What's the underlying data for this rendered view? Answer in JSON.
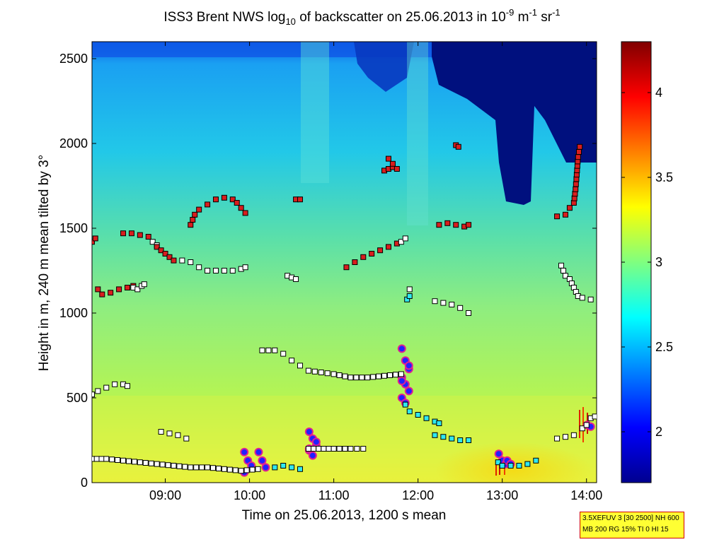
{
  "title": {
    "prefix": "ISS3 Brent NWS log",
    "sub": "10",
    "middle": " of backscatter on 25.06.2013 in 10",
    "sup1": "-9",
    "unit1": " m",
    "sup2": "-1",
    "unit2": " sr",
    "sup3": "-1"
  },
  "info_box": {
    "line1": "3.5XEFUV 3 [30 2500] NH 600",
    "line2": "MB 200 RG 15% TI 0 HI 15"
  },
  "colors": {
    "background_low": "#c8f53c",
    "background_mid": "#5be0a0",
    "background_high": "#1ea8f0",
    "dark_top": "#00007e",
    "warm_surface": "#ffd800",
    "marker_red": "#d81e1e",
    "marker_white": "#ffffff",
    "marker_cyan": "#2fe8f0",
    "marker_blue": "#2020ff"
  },
  "chart_data": {
    "type": "heatmap",
    "title": "ISS3 Brent NWS log10 of backscatter on 25.06.2013 in 10^-9 m^-1 sr^-1",
    "xlabel": "Time on 25.06.2013, 1200 s mean",
    "ylabel": "Height in m, 240 m mean tilted by 3°",
    "xlim": [
      8.13,
      14.12
    ],
    "ylim": [
      0,
      2600
    ],
    "xticks": [
      9,
      10,
      11,
      12,
      13,
      14
    ],
    "xtick_labels": [
      "09:00",
      "10:00",
      "11:00",
      "12:00",
      "13:00",
      "14:00"
    ],
    "yticks": [
      0,
      500,
      1000,
      1500,
      2000,
      2500
    ],
    "ytick_labels": [
      "0",
      "500",
      "1000",
      "1500",
      "2000",
      "2500"
    ],
    "colorbar": {
      "range": [
        1.7,
        4.3
      ],
      "ticks": [
        2,
        2.5,
        3,
        3.5,
        4
      ],
      "tick_labels": [
        "2",
        "2.5",
        "3",
        "3.5",
        "4"
      ],
      "colormap": "jet"
    },
    "field_description": "log10 backscatter field with dark-blue low values aloft after 12:00 and warm values near the surface around 13:00",
    "layers": [
      {
        "name": "red-upper-1",
        "marker": "red",
        "points": [
          [
            8.13,
            1420
          ],
          [
            8.17,
            1440
          ]
        ]
      },
      {
        "name": "red-upper-2",
        "marker": "red",
        "points": [
          [
            8.2,
            1140
          ],
          [
            8.25,
            1110
          ],
          [
            8.35,
            1120
          ],
          [
            8.45,
            1140
          ],
          [
            8.55,
            1150
          ],
          [
            8.62,
            1160
          ]
        ]
      },
      {
        "name": "white-upper-2",
        "marker": "white",
        "points": [
          [
            8.62,
            1150
          ],
          [
            8.67,
            1140
          ],
          [
            8.72,
            1160
          ],
          [
            8.75,
            1170
          ]
        ]
      },
      {
        "name": "red-upper-3",
        "marker": "red",
        "points": [
          [
            8.5,
            1470
          ],
          [
            8.6,
            1470
          ],
          [
            8.7,
            1460
          ],
          [
            8.8,
            1450
          ]
        ]
      },
      {
        "name": "white-upper-3",
        "marker": "white",
        "points": [
          [
            8.85,
            1420
          ],
          [
            8.9,
            1400
          ]
        ]
      },
      {
        "name": "red-upper-4",
        "marker": "red",
        "points": [
          [
            8.9,
            1390
          ],
          [
            8.95,
            1370
          ],
          [
            9.0,
            1350
          ],
          [
            9.05,
            1330
          ],
          [
            9.1,
            1310
          ]
        ]
      },
      {
        "name": "white-upper-4",
        "marker": "white",
        "points": [
          [
            9.2,
            1310
          ],
          [
            9.3,
            1300
          ],
          [
            9.4,
            1270
          ],
          [
            9.5,
            1250
          ],
          [
            9.6,
            1250
          ],
          [
            9.7,
            1250
          ],
          [
            9.8,
            1250
          ],
          [
            9.9,
            1260
          ],
          [
            9.95,
            1270
          ]
        ]
      },
      {
        "name": "red-upper-5",
        "marker": "red",
        "points": [
          [
            9.3,
            1520
          ],
          [
            9.35,
            1580
          ],
          [
            9.4,
            1610
          ],
          [
            9.5,
            1640
          ],
          [
            9.6,
            1670
          ],
          [
            9.7,
            1680
          ],
          [
            9.8,
            1670
          ],
          [
            9.85,
            1650
          ],
          [
            9.9,
            1620
          ],
          [
            9.95,
            1590
          ]
        ]
      },
      {
        "name": "red-upper-6",
        "marker": "red",
        "points": [
          [
            10.55,
            1670
          ],
          [
            10.6,
            1670
          ]
        ]
      },
      {
        "name": "white-upper-7",
        "marker": "white",
        "points": [
          [
            10.45,
            1220
          ],
          [
            10.5,
            1210
          ],
          [
            10.55,
            1200
          ]
        ]
      },
      {
        "name": "red-upper-8",
        "marker": "red",
        "points": [
          [
            11.15,
            1270
          ],
          [
            11.25,
            1300
          ],
          [
            11.35,
            1330
          ],
          [
            11.45,
            1350
          ],
          [
            11.55,
            1370
          ],
          [
            11.65,
            1390
          ],
          [
            11.75,
            1410
          ]
        ]
      },
      {
        "name": "white-upper-8",
        "marker": "white",
        "points": [
          [
            11.8,
            1420
          ],
          [
            11.85,
            1440
          ]
        ]
      },
      {
        "name": "red-upper-9",
        "marker": "red",
        "points": [
          [
            11.6,
            1840
          ],
          [
            11.65,
            1850
          ],
          [
            11.7,
            1860
          ],
          [
            11.75,
            1850
          ],
          [
            11.65,
            1910
          ]
        ]
      },
      {
        "name": "cyan-upper-10",
        "marker": "cyan",
        "points": [
          [
            11.87,
            1080
          ],
          [
            11.9,
            1100
          ]
        ]
      },
      {
        "name": "white-upper-10",
        "marker": "white",
        "points": [
          [
            11.9,
            1140
          ]
        ]
      },
      {
        "name": "red-upper-11",
        "marker": "red",
        "points": [
          [
            12.25,
            1520
          ],
          [
            12.35,
            1530
          ],
          [
            12.45,
            1520
          ],
          [
            12.55,
            1510
          ],
          [
            12.6,
            1520
          ]
        ]
      },
      {
        "name": "red-upper-12",
        "marker": "red",
        "points": [
          [
            12.45,
            1990
          ],
          [
            12.48,
            1980
          ]
        ]
      },
      {
        "name": "white-upper-13",
        "marker": "white",
        "points": [
          [
            12.2,
            1070
          ],
          [
            12.3,
            1060
          ],
          [
            12.4,
            1050
          ],
          [
            12.5,
            1030
          ],
          [
            12.6,
            1000
          ]
        ]
      },
      {
        "name": "red-upper-14",
        "marker": "red",
        "points": [
          [
            13.65,
            1570
          ],
          [
            13.75,
            1580
          ],
          [
            13.8,
            1620
          ],
          [
            13.85,
            1650
          ],
          [
            13.87,
            1730
          ],
          [
            13.88,
            1790
          ],
          [
            13.9,
            1920
          ],
          [
            13.92,
            1980
          ]
        ]
      },
      {
        "name": "white-upper-15",
        "marker": "white",
        "points": [
          [
            13.7,
            1280
          ],
          [
            13.75,
            1220
          ],
          [
            13.8,
            1200
          ],
          [
            13.85,
            1150
          ],
          [
            13.9,
            1100
          ],
          [
            13.95,
            1090
          ],
          [
            14.05,
            1080
          ]
        ]
      },
      {
        "name": "white-mid-1",
        "marker": "white",
        "points": [
          [
            8.13,
            520
          ],
          [
            8.2,
            540
          ],
          [
            8.3,
            560
          ],
          [
            8.4,
            580
          ],
          [
            8.5,
            580
          ],
          [
            8.55,
            570
          ]
        ]
      },
      {
        "name": "white-mid-2",
        "marker": "white",
        "points": [
          [
            10.15,
            780
          ],
          [
            10.3,
            780
          ],
          [
            10.4,
            760
          ],
          [
            10.5,
            720
          ],
          [
            10.6,
            690
          ],
          [
            10.7,
            660
          ],
          [
            10.85,
            650
          ],
          [
            11.0,
            640
          ],
          [
            11.2,
            620
          ],
          [
            11.4,
            620
          ],
          [
            11.6,
            630
          ],
          [
            11.8,
            640
          ]
        ]
      },
      {
        "name": "cyan-mid-3",
        "marker": "cyan",
        "points": [
          [
            11.85,
            460
          ],
          [
            11.9,
            420
          ],
          [
            12.0,
            400
          ],
          [
            12.1,
            380
          ],
          [
            12.2,
            360
          ],
          [
            12.25,
            350
          ]
        ]
      },
      {
        "name": "white-low-1",
        "marker": "white",
        "points": [
          [
            8.13,
            140
          ],
          [
            8.3,
            140
          ],
          [
            8.5,
            130
          ],
          [
            8.7,
            120
          ],
          [
            8.9,
            110
          ],
          [
            9.1,
            100
          ],
          [
            9.3,
            90
          ],
          [
            9.5,
            90
          ],
          [
            9.7,
            80
          ],
          [
            9.9,
            70
          ],
          [
            10.1,
            80
          ]
        ]
      },
      {
        "name": "white-low-2",
        "marker": "white",
        "points": [
          [
            8.95,
            300
          ],
          [
            9.05,
            290
          ],
          [
            9.15,
            280
          ],
          [
            9.25,
            260
          ]
        ]
      },
      {
        "name": "cyan-low-3",
        "marker": "cyan",
        "points": [
          [
            10.3,
            90
          ],
          [
            10.4,
            100
          ],
          [
            10.5,
            90
          ],
          [
            10.6,
            80
          ]
        ]
      },
      {
        "name": "white-low-4",
        "marker": "white",
        "points": [
          [
            10.7,
            200
          ],
          [
            11.0,
            200
          ],
          [
            11.2,
            200
          ],
          [
            11.35,
            200
          ]
        ]
      },
      {
        "name": "cyan-low-5",
        "marker": "cyan",
        "points": [
          [
            12.2,
            280
          ],
          [
            12.3,
            270
          ],
          [
            12.4,
            260
          ],
          [
            12.5,
            250
          ],
          [
            12.6,
            250
          ]
        ]
      },
      {
        "name": "cyan-low-6",
        "marker": "cyan",
        "points": [
          [
            12.95,
            120
          ],
          [
            13.0,
            100
          ],
          [
            13.1,
            100
          ],
          [
            13.2,
            100
          ],
          [
            13.3,
            110
          ],
          [
            13.4,
            130
          ]
        ]
      },
      {
        "name": "white-low-7",
        "marker": "white",
        "points": [
          [
            13.65,
            260
          ],
          [
            13.75,
            270
          ],
          [
            13.85,
            280
          ],
          [
            13.95,
            320
          ],
          [
            14.0,
            340
          ],
          [
            14.05,
            380
          ],
          [
            14.1,
            390
          ]
        ]
      }
    ],
    "blue_bursts": [
      {
        "x": 9.98,
        "values": [
          180,
          130,
          100,
          60
        ]
      },
      {
        "x": 10.15,
        "values": [
          180,
          130,
          90
        ]
      },
      {
        "x": 10.75,
        "values": [
          300,
          260,
          220,
          190,
          160,
          240,
          200
        ]
      },
      {
        "x": 11.85,
        "values": [
          790,
          720,
          670,
          620,
          580,
          540,
          500,
          470,
          690,
          600
        ]
      },
      {
        "x": 13.0,
        "values": [
          170,
          130,
          110
        ]
      },
      {
        "x": 13.1,
        "values": [
          130,
          110
        ]
      },
      {
        "x": 14.05,
        "values": [
          340,
          330
        ]
      }
    ]
  }
}
